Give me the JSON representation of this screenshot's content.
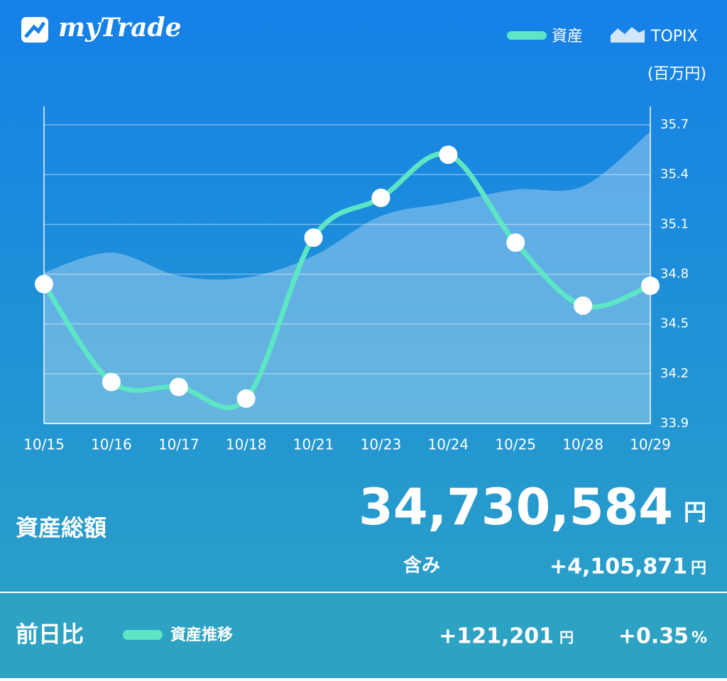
{
  "header": {
    "logo": "myTrade"
  },
  "chart_data": {
    "type": "line",
    "unit_label": "(百万円)",
    "categories": [
      "10/15",
      "10/16",
      "10/17",
      "10/18",
      "10/21",
      "10/23",
      "10/24",
      "10/25",
      "10/28",
      "10/29"
    ],
    "series": [
      {
        "name": "資産",
        "type": "line",
        "color": "#5ce6c4",
        "values": [
          34.74,
          34.15,
          34.12,
          34.05,
          35.02,
          35.26,
          35.52,
          34.99,
          34.61,
          34.73
        ]
      },
      {
        "name": "TOPIX",
        "type": "area",
        "color": "#ffffff",
        "values": [
          34.81,
          34.93,
          34.79,
          34.78,
          34.91,
          35.15,
          35.23,
          35.31,
          35.33,
          35.66
        ]
      }
    ],
    "ylim": [
      33.9,
      35.7
    ],
    "yticks": [
      33.9,
      34.2,
      34.5,
      34.8,
      35.1,
      35.4,
      35.7
    ],
    "grid": true,
    "axis_side": "right"
  },
  "summary": {
    "label": "資産総額",
    "total": "34,730,584",
    "total_unit": "円",
    "gain_label": "含み",
    "gain": "+4,105,871",
    "gain_unit": "円"
  },
  "footer": {
    "label": "前日比",
    "legend": "資産推移",
    "change": "+121,201",
    "change_unit": "円",
    "percent": "+0.35",
    "percent_unit": "%"
  }
}
